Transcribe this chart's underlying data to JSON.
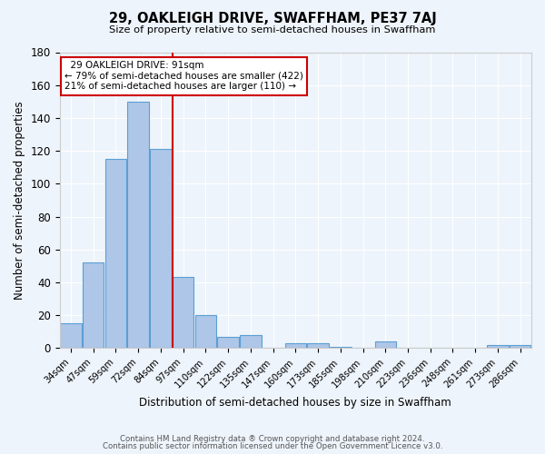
{
  "title": "29, OAKLEIGH DRIVE, SWAFFHAM, PE37 7AJ",
  "subtitle": "Size of property relative to semi-detached houses in Swaffham",
  "xlabel": "Distribution of semi-detached houses by size in Swaffham",
  "ylabel": "Number of semi-detached properties",
  "footer1": "Contains HM Land Registry data ® Crown copyright and database right 2024.",
  "footer2": "Contains public sector information licensed under the Open Government Licence v3.0.",
  "categories": [
    "34sqm",
    "47sqm",
    "59sqm",
    "72sqm",
    "84sqm",
    "97sqm",
    "110sqm",
    "122sqm",
    "135sqm",
    "147sqm",
    "160sqm",
    "173sqm",
    "185sqm",
    "198sqm",
    "210sqm",
    "223sqm",
    "236sqm",
    "248sqm",
    "261sqm",
    "273sqm",
    "286sqm"
  ],
  "values": [
    15,
    52,
    115,
    150,
    121,
    43,
    20,
    7,
    8,
    0,
    3,
    3,
    1,
    0,
    4,
    0,
    0,
    0,
    0,
    2,
    2
  ],
  "bar_color": "#aec6e8",
  "bar_edge_color": "#5a9fd4",
  "background_color": "#eef4fb",
  "grid_color": "#ffffff",
  "property_line_index": 4.54,
  "annotation_title": "29 OAKLEIGH DRIVE: 91sqm",
  "annotation_line1": "← 79% of semi-detached houses are smaller (422)",
  "annotation_line2": "21% of semi-detached houses are larger (110) →",
  "annotation_box_color": "#ffffff",
  "annotation_box_edge_color": "#cc0000",
  "red_line_color": "#cc0000",
  "ylim": [
    0,
    180
  ],
  "yticks": [
    0,
    20,
    40,
    60,
    80,
    100,
    120,
    140,
    160,
    180
  ]
}
